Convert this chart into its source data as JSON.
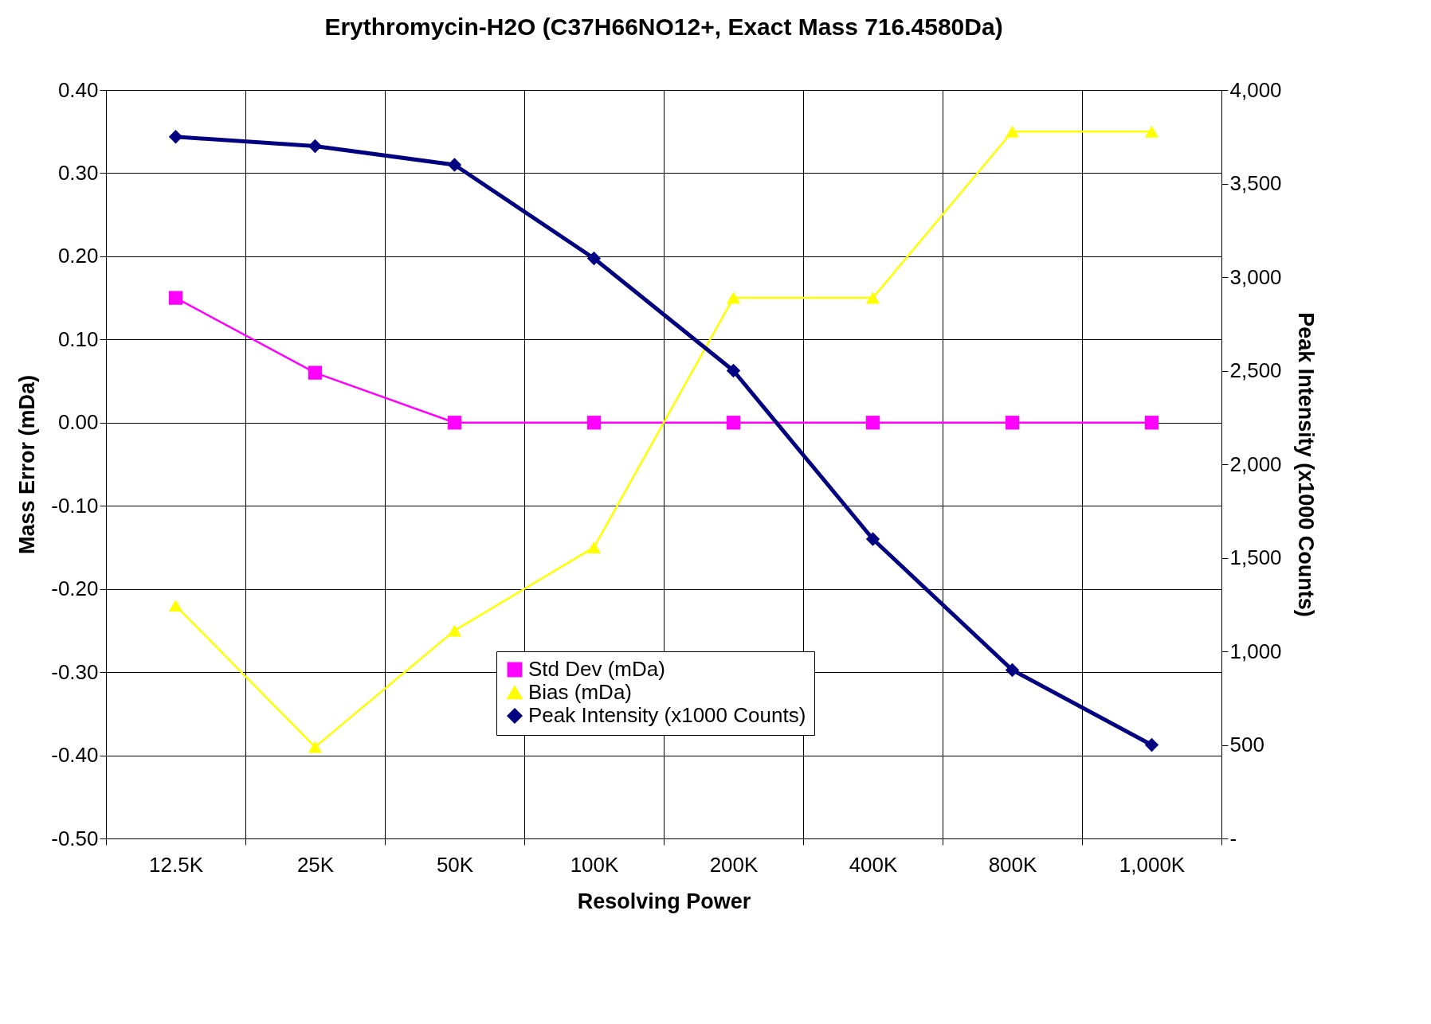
{
  "chart_data": {
    "type": "line",
    "title": "Erythromycin-H2O (C37H66NO12+, Exact Mass  716.4580Da)",
    "xlabel": "Resolving Power",
    "ylabel": "Mass Error (mDa)",
    "y2label": "Peak Intensity (x1000 Counts)",
    "categories": [
      "12.5K",
      "25K",
      "50K",
      "100K",
      "200K",
      "400K",
      "800K",
      "1,000K"
    ],
    "series": [
      {
        "name": "Std Dev (mDa)",
        "color": "#ff00ff",
        "marker": "square",
        "values": [
          0.15,
          0.06,
          0.0,
          0.0,
          0.0,
          0.0,
          0.0,
          0.0
        ]
      },
      {
        "name": "Bias (mDa)",
        "color": "#ffff00",
        "marker": "triangle",
        "values": [
          -0.22,
          -0.39,
          -0.25,
          -0.15,
          0.15,
          0.15,
          0.35,
          0.35
        ]
      },
      {
        "name": "Peak Intensity (x1000 Counts)",
        "color": "#000080",
        "marker": "diamond",
        "axis": "y2",
        "values": [
          3750,
          3700,
          3600,
          3100,
          2500,
          1600,
          900,
          500
        ]
      }
    ],
    "ylim": [
      -0.5,
      0.4
    ],
    "yticks": [
      {
        "value": -0.5,
        "label": "-0.50"
      },
      {
        "value": -0.4,
        "label": "-0.40"
      },
      {
        "value": -0.3,
        "label": "-0.30"
      },
      {
        "value": -0.2,
        "label": "-0.20"
      },
      {
        "value": -0.1,
        "label": "-0.10"
      },
      {
        "value": 0,
        "label": "0.00"
      },
      {
        "value": 0.1,
        "label": "0.10"
      },
      {
        "value": 0.2,
        "label": "0.20"
      },
      {
        "value": 0.3,
        "label": "0.30"
      },
      {
        "value": 0.4,
        "label": "0.40"
      }
    ],
    "y2lim": [
      0,
      4000
    ],
    "y2ticks": [
      {
        "value": 0,
        "label": "-"
      },
      500,
      {
        "value": 1000,
        "label": "1,000"
      },
      {
        "value": 1500,
        "label": "1,500"
      },
      {
        "value": 2000,
        "label": "2,000"
      },
      {
        "value": 2500,
        "label": "2,500"
      },
      {
        "value": 3000,
        "label": "3,000"
      },
      {
        "value": 3500,
        "label": "3,500"
      },
      {
        "value": 4000,
        "label": "4,000"
      }
    ],
    "grid": true,
    "legend": "bottom"
  }
}
